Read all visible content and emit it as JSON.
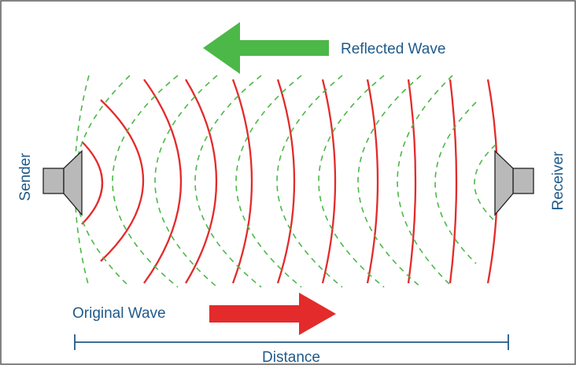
{
  "labels": {
    "reflected_wave": "Reflected Wave",
    "original_wave": "Original Wave",
    "sender": "Sender",
    "receiver": "Receiver",
    "distance": "Distance"
  },
  "colors": {
    "original_wave": "#e32b2b",
    "reflected_wave": "#4cb848",
    "label_text": "#1f5a8a",
    "speaker_fill": "#b9b9b9",
    "border": "#5a5a5a"
  }
}
